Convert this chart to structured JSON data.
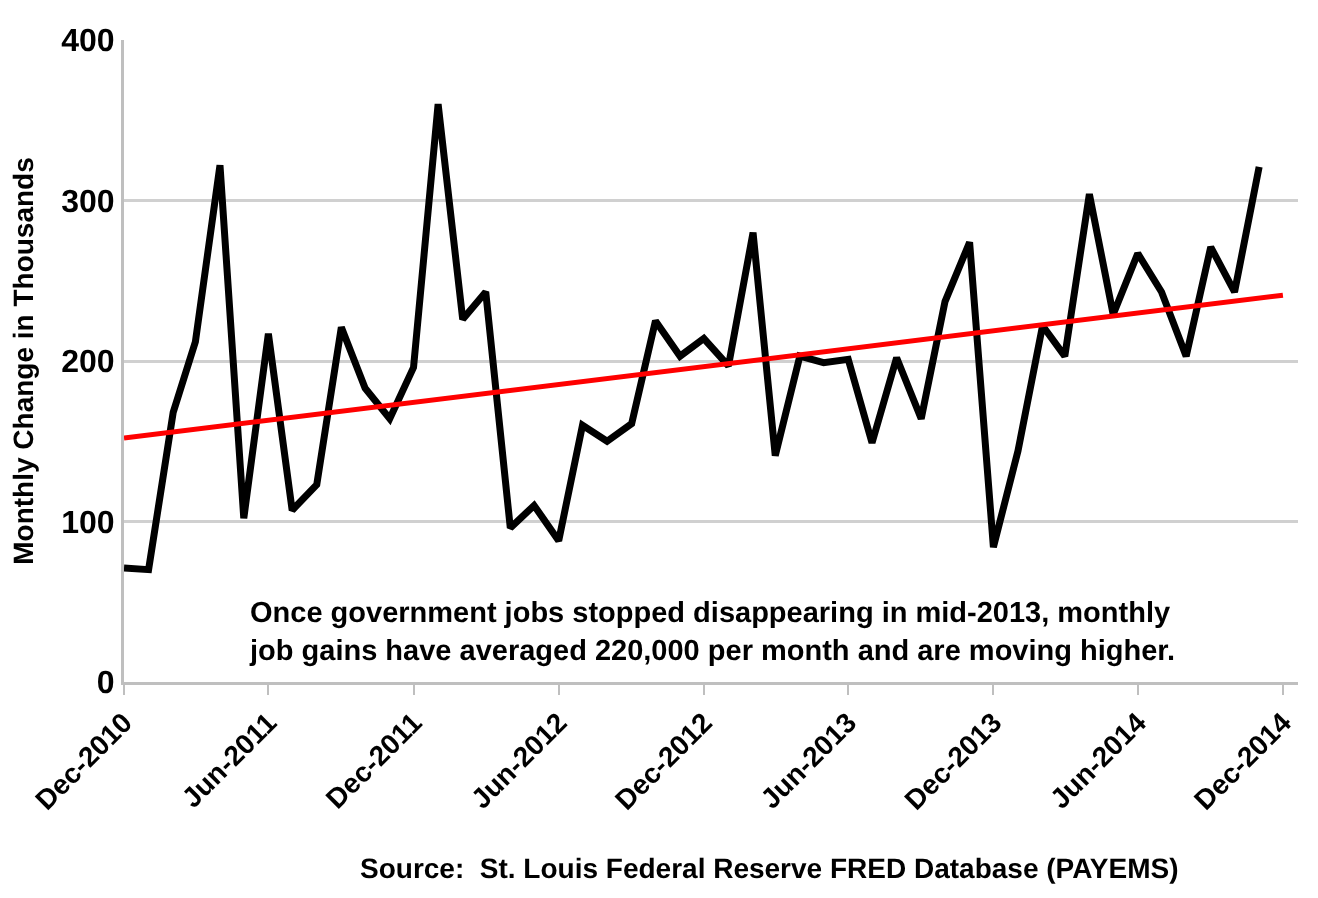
{
  "chart_data": {
    "type": "line",
    "ylabel": "Monthly Change in Thousands",
    "x": [
      "2010-12",
      "2011-01",
      "2011-02",
      "2011-03",
      "2011-04",
      "2011-05",
      "2011-06",
      "2011-07",
      "2011-08",
      "2011-09",
      "2011-10",
      "2011-11",
      "2011-12",
      "2012-01",
      "2012-02",
      "2012-03",
      "2012-04",
      "2012-05",
      "2012-06",
      "2012-07",
      "2012-08",
      "2012-09",
      "2012-10",
      "2012-11",
      "2012-12",
      "2013-01",
      "2013-02",
      "2013-03",
      "2013-04",
      "2013-05",
      "2013-06",
      "2013-07",
      "2013-08",
      "2013-09",
      "2013-10",
      "2013-11",
      "2013-12",
      "2014-01",
      "2014-02",
      "2014-03",
      "2014-04",
      "2014-05",
      "2014-06",
      "2014-07",
      "2014-08",
      "2014-09",
      "2014-10",
      "2014-11"
    ],
    "series": [
      {
        "color": "#000000",
        "values": [
          71,
          70,
          168,
          212,
          322,
          102,
          217,
          107,
          123,
          221,
          183,
          164,
          196,
          360,
          226,
          243,
          96,
          110,
          88,
          160,
          150,
          161,
          225,
          203,
          214,
          197,
          280,
          141,
          203,
          199,
          201,
          149,
          202,
          164,
          237,
          274,
          84,
          144,
          222,
          203,
          304,
          229,
          267,
          243,
          203,
          271,
          243,
          321
        ]
      },
      {
        "type": "line",
        "color": "#ff0000",
        "x": [
          "2010-12",
          "2014-12"
        ],
        "values": [
          152,
          241
        ]
      }
    ],
    "xlim": [
      "2010-12",
      "2014-12-20"
    ],
    "xticks": [
      {
        "value": "2010-12",
        "label": "Dec-2010"
      },
      {
        "value": "2011-06",
        "label": "Jun-2011"
      },
      {
        "value": "2011-12",
        "label": "Dec-2011"
      },
      {
        "value": "2012-06",
        "label": "Jun-2012"
      },
      {
        "value": "2012-12",
        "label": "Dec-2012"
      },
      {
        "value": "2013-06",
        "label": "Jun-2013"
      },
      {
        "value": "2013-12",
        "label": "Dec-2013"
      },
      {
        "value": "2014-06",
        "label": "Jun-2014"
      },
      {
        "value": "2014-12",
        "label": "Dec-2014"
      }
    ],
    "ylim": [
      0,
      400
    ],
    "yticks": [
      0,
      100,
      200,
      300,
      400
    ],
    "grid": "y",
    "marker": "none",
    "line_style": "solid",
    "annotations": [
      "Once government jobs stopped disappearing in mid-2013, monthly\njob gains have averaged 220,000 per month and are moving higher.",
      "Source:  St. Louis Federal Reserve FRED Database (PAYEMS)"
    ]
  }
}
